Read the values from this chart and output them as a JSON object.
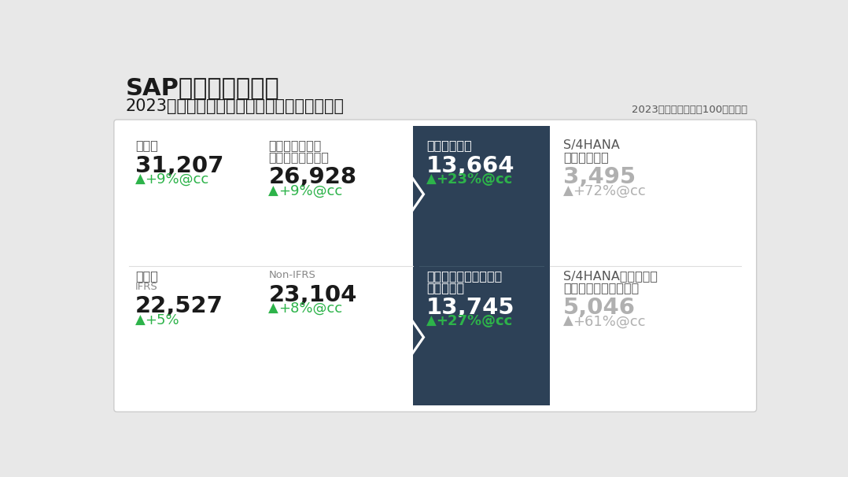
{
  "bg_color": "#e8e8e8",
  "card_bg": "#ffffff",
  "dark_col_bg": "#2d4157",
  "title_main": "SAPグローバル業績",
  "title_sub": "2023年度も好調なクラウド事業の勢いを継続",
  "title_note": "2023年通年　単位：100万ユーロ",
  "green": "#2db34a",
  "gray_text": "#b0b0b0",
  "white": "#ffffff",
  "dark_text": "#1a1a1a",
  "label_gray": "#555555",
  "sublabel_gray": "#888888",
  "divider_color": "#dddddd",
  "divider_dark": "#3d5468",
  "card_border": "#cccccc",
  "cells": [
    {
      "col": 0,
      "row": 0,
      "label_lines": [
        "総売上"
      ],
      "value": "31,207",
      "change": "+9%@cc",
      "dark": false,
      "gray_value": false
    },
    {
      "col": 1,
      "row": 0,
      "label_lines": [
        "クラウドおよび",
        "ソフトウェア売上"
      ],
      "value": "26,928",
      "change": "+9%@cc",
      "dark": false,
      "gray_value": false
    },
    {
      "col": 2,
      "row": 0,
      "label_lines": [
        "クラウド売上"
      ],
      "value": "13,664",
      "change": "+23%@cc",
      "dark": true,
      "gray_value": false
    },
    {
      "col": 3,
      "row": 0,
      "label_lines": [
        "S/4HANA",
        "クラウド売上"
      ],
      "value": "3,495",
      "change": "+72%@cc",
      "dark": false,
      "gray_value": true
    },
    {
      "col": 0,
      "row": 1,
      "label_lines": [
        "総利益",
        "IFRS"
      ],
      "value": "22,527",
      "change": "+5%",
      "dark": false,
      "gray_value": false,
      "sublabel_index": 1
    },
    {
      "col": 1,
      "row": 1,
      "label_lines": [
        "Non-IFRS"
      ],
      "value": "23,104",
      "change": "+8%@cc",
      "dark": false,
      "gray_value": false,
      "is_sublabel": true
    },
    {
      "col": 2,
      "row": 1,
      "label_lines": [
        "カレント・クラウド・",
        "バックログ"
      ],
      "value": "13,745",
      "change": "+27%@cc",
      "dark": true,
      "gray_value": false
    },
    {
      "col": 3,
      "row": 1,
      "label_lines": [
        "S/4HANAカレント・",
        "クラウド・バックログ"
      ],
      "value": "5,046",
      "change": "+61%@cc",
      "dark": false,
      "gray_value": true
    }
  ]
}
